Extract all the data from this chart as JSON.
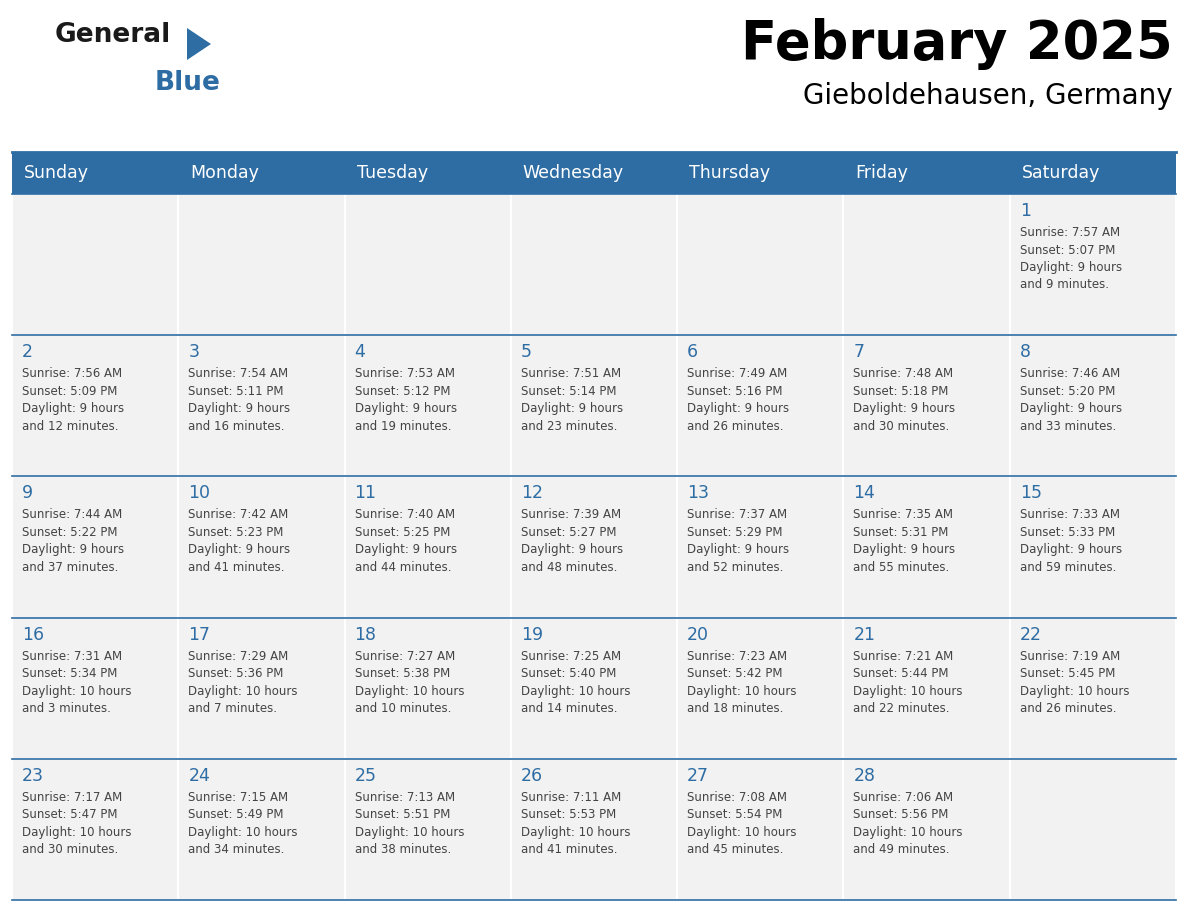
{
  "title": "February 2025",
  "subtitle": "Gieboldehausen, Germany",
  "header_color": "#2E6DA4",
  "header_text_color": "#FFFFFF",
  "cell_bg_color": "#F2F2F2",
  "cell_border_color": "#2E6DA4",
  "day_number_color": "#2E6DA4",
  "text_color": "#444444",
  "days_of_week": [
    "Sunday",
    "Monday",
    "Tuesday",
    "Wednesday",
    "Thursday",
    "Friday",
    "Saturday"
  ],
  "weeks": [
    [
      {
        "day": null,
        "info": null
      },
      {
        "day": null,
        "info": null
      },
      {
        "day": null,
        "info": null
      },
      {
        "day": null,
        "info": null
      },
      {
        "day": null,
        "info": null
      },
      {
        "day": null,
        "info": null
      },
      {
        "day": 1,
        "info": "Sunrise: 7:57 AM\nSunset: 5:07 PM\nDaylight: 9 hours\nand 9 minutes."
      }
    ],
    [
      {
        "day": 2,
        "info": "Sunrise: 7:56 AM\nSunset: 5:09 PM\nDaylight: 9 hours\nand 12 minutes."
      },
      {
        "day": 3,
        "info": "Sunrise: 7:54 AM\nSunset: 5:11 PM\nDaylight: 9 hours\nand 16 minutes."
      },
      {
        "day": 4,
        "info": "Sunrise: 7:53 AM\nSunset: 5:12 PM\nDaylight: 9 hours\nand 19 minutes."
      },
      {
        "day": 5,
        "info": "Sunrise: 7:51 AM\nSunset: 5:14 PM\nDaylight: 9 hours\nand 23 minutes."
      },
      {
        "day": 6,
        "info": "Sunrise: 7:49 AM\nSunset: 5:16 PM\nDaylight: 9 hours\nand 26 minutes."
      },
      {
        "day": 7,
        "info": "Sunrise: 7:48 AM\nSunset: 5:18 PM\nDaylight: 9 hours\nand 30 minutes."
      },
      {
        "day": 8,
        "info": "Sunrise: 7:46 AM\nSunset: 5:20 PM\nDaylight: 9 hours\nand 33 minutes."
      }
    ],
    [
      {
        "day": 9,
        "info": "Sunrise: 7:44 AM\nSunset: 5:22 PM\nDaylight: 9 hours\nand 37 minutes."
      },
      {
        "day": 10,
        "info": "Sunrise: 7:42 AM\nSunset: 5:23 PM\nDaylight: 9 hours\nand 41 minutes."
      },
      {
        "day": 11,
        "info": "Sunrise: 7:40 AM\nSunset: 5:25 PM\nDaylight: 9 hours\nand 44 minutes."
      },
      {
        "day": 12,
        "info": "Sunrise: 7:39 AM\nSunset: 5:27 PM\nDaylight: 9 hours\nand 48 minutes."
      },
      {
        "day": 13,
        "info": "Sunrise: 7:37 AM\nSunset: 5:29 PM\nDaylight: 9 hours\nand 52 minutes."
      },
      {
        "day": 14,
        "info": "Sunrise: 7:35 AM\nSunset: 5:31 PM\nDaylight: 9 hours\nand 55 minutes."
      },
      {
        "day": 15,
        "info": "Sunrise: 7:33 AM\nSunset: 5:33 PM\nDaylight: 9 hours\nand 59 minutes."
      }
    ],
    [
      {
        "day": 16,
        "info": "Sunrise: 7:31 AM\nSunset: 5:34 PM\nDaylight: 10 hours\nand 3 minutes."
      },
      {
        "day": 17,
        "info": "Sunrise: 7:29 AM\nSunset: 5:36 PM\nDaylight: 10 hours\nand 7 minutes."
      },
      {
        "day": 18,
        "info": "Sunrise: 7:27 AM\nSunset: 5:38 PM\nDaylight: 10 hours\nand 10 minutes."
      },
      {
        "day": 19,
        "info": "Sunrise: 7:25 AM\nSunset: 5:40 PM\nDaylight: 10 hours\nand 14 minutes."
      },
      {
        "day": 20,
        "info": "Sunrise: 7:23 AM\nSunset: 5:42 PM\nDaylight: 10 hours\nand 18 minutes."
      },
      {
        "day": 21,
        "info": "Sunrise: 7:21 AM\nSunset: 5:44 PM\nDaylight: 10 hours\nand 22 minutes."
      },
      {
        "day": 22,
        "info": "Sunrise: 7:19 AM\nSunset: 5:45 PM\nDaylight: 10 hours\nand 26 minutes."
      }
    ],
    [
      {
        "day": 23,
        "info": "Sunrise: 7:17 AM\nSunset: 5:47 PM\nDaylight: 10 hours\nand 30 minutes."
      },
      {
        "day": 24,
        "info": "Sunrise: 7:15 AM\nSunset: 5:49 PM\nDaylight: 10 hours\nand 34 minutes."
      },
      {
        "day": 25,
        "info": "Sunrise: 7:13 AM\nSunset: 5:51 PM\nDaylight: 10 hours\nand 38 minutes."
      },
      {
        "day": 26,
        "info": "Sunrise: 7:11 AM\nSunset: 5:53 PM\nDaylight: 10 hours\nand 41 minutes."
      },
      {
        "day": 27,
        "info": "Sunrise: 7:08 AM\nSunset: 5:54 PM\nDaylight: 10 hours\nand 45 minutes."
      },
      {
        "day": 28,
        "info": "Sunrise: 7:06 AM\nSunset: 5:56 PM\nDaylight: 10 hours\nand 49 minutes."
      },
      {
        "day": null,
        "info": null
      }
    ]
  ],
  "fig_width": 11.88,
  "fig_height": 9.18,
  "dpi": 100
}
